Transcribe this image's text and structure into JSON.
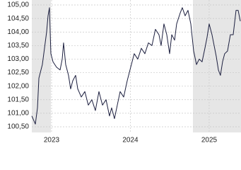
{
  "chart_data": {
    "type": "line",
    "x": [
      2022.749,
      2022.794,
      2022.821,
      2022.839,
      2022.883,
      2022.91,
      2022.937,
      2022.955,
      2022.973,
      2022.991,
      2023.018,
      2023.063,
      2023.108,
      2023.135,
      2023.152,
      2023.179,
      2023.215,
      2023.242,
      2023.269,
      2023.305,
      2023.332,
      2023.377,
      2023.422,
      2023.466,
      2023.511,
      2023.556,
      2023.601,
      2023.646,
      2023.691,
      2023.735,
      2023.762,
      2023.798,
      2023.834,
      2023.87,
      2023.915,
      2023.96,
      2024.004,
      2024.049,
      2024.094,
      2024.139,
      2024.184,
      2024.229,
      2024.274,
      2024.318,
      2024.363,
      2024.39,
      2024.426,
      2024.462,
      2024.498,
      2024.525,
      2024.561,
      2024.587,
      2024.632,
      2024.659,
      2024.695,
      2024.731,
      2024.767,
      2024.803,
      2024.839,
      2024.874,
      2024.91,
      2024.946,
      2024.973,
      2025.0,
      2025.036,
      2025.063,
      2025.09,
      2025.117,
      2025.143,
      2025.17,
      2025.197,
      2025.233,
      2025.269,
      2025.305,
      2025.341,
      2025.368,
      2025.395
    ],
    "series": [
      {
        "color": "#1c1f3f",
        "values": [
          100.9,
          100.6,
          101.2,
          102.3,
          102.8,
          103.4,
          104.0,
          104.6,
          104.9,
          103.2,
          102.9,
          102.7,
          102.6,
          103.0,
          103.6,
          102.8,
          102.4,
          101.9,
          102.2,
          102.4,
          101.9,
          101.6,
          101.8,
          101.3,
          101.5,
          101.1,
          101.8,
          101.3,
          101.5,
          100.9,
          101.2,
          100.8,
          101.3,
          101.8,
          101.6,
          102.2,
          102.7,
          103.2,
          103.0,
          103.4,
          103.2,
          103.6,
          103.5,
          104.1,
          103.9,
          103.5,
          104.3,
          103.9,
          103.2,
          103.9,
          103.7,
          104.3,
          104.7,
          104.9,
          104.6,
          104.8,
          104.3,
          103.3,
          102.8,
          103.0,
          102.9,
          103.4,
          103.8,
          104.3,
          103.9,
          103.5,
          103.1,
          102.6,
          102.4,
          102.9,
          103.2,
          103.3,
          103.9,
          103.9,
          104.8,
          104.8,
          104.4
        ]
      }
    ],
    "xlim": [
      2022.749,
      2025.404
    ],
    "xticks": [
      2023,
      2024,
      2025
    ],
    "ylim": [
      100.5,
      105
    ],
    "yticks": [
      {
        "value": 100.5,
        "label": "100,50"
      },
      {
        "value": 101,
        "label": "101,00"
      },
      {
        "value": 101.5,
        "label": "101,50"
      },
      {
        "value": 102,
        "label": "102,00"
      },
      {
        "value": 102.5,
        "label": "102,50"
      },
      {
        "value": 103,
        "label": "103,00"
      },
      {
        "value": 103.5,
        "label": "103,50"
      },
      {
        "value": 104,
        "label": "104,00"
      },
      {
        "value": 104.5,
        "label": "104,50"
      },
      {
        "value": 105,
        "label": "105,00"
      }
    ],
    "grid": true
  }
}
